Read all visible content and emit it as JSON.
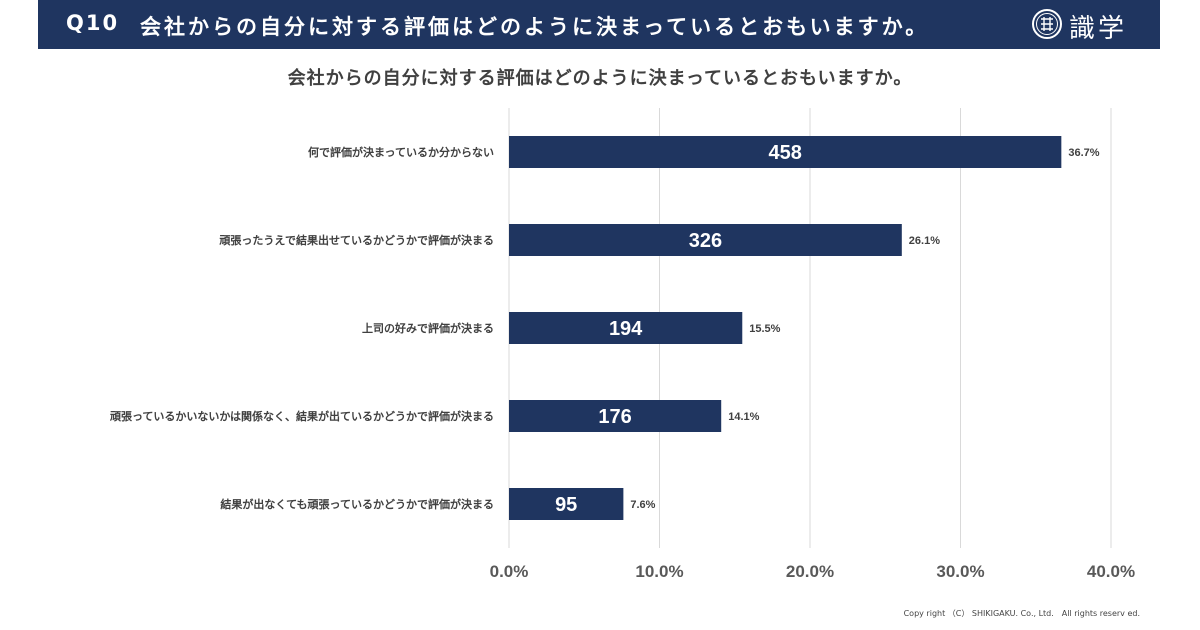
{
  "header": {
    "question_no": "Q10",
    "question": "会社からの自分に対する評価はどのように決まっているとおもいますか。",
    "logo_text": "識学",
    "logo_icon": "shikigaku-seal-icon"
  },
  "colors": {
    "header_bg": "#1f3560",
    "bar": "#1f3560",
    "grid": "#d9d9d9",
    "axis_text": "#595959",
    "label_text": "#404040"
  },
  "chart_data": {
    "type": "bar",
    "orientation": "horizontal",
    "title": "会社からの自分に対する評価はどのように決まっているとおもいますか。",
    "categories": [
      "何で評価が決まっているか分からない",
      "頑張ったうえで結果出せているかどうかで評価が決まる",
      "上司の好みで評価が決まる",
      "頑張っているかいないかは関係なく、結果が出ているかどうかで評価が決まる",
      "結果が出なくても頑張っているかどうかで評価が決まる"
    ],
    "values": [
      36.7,
      26.1,
      15.5,
      14.1,
      7.6
    ],
    "value_labels": [
      "36.7%",
      "26.1%",
      "15.5%",
      "14.1%",
      "7.6%"
    ],
    "counts": [
      458,
      326,
      194,
      176,
      95
    ],
    "xlim": [
      0,
      40
    ],
    "xticks": [
      0,
      10,
      20,
      30,
      40
    ],
    "xtick_labels": [
      "0.0%",
      "10.0%",
      "20.0%",
      "30.0%",
      "40.0%"
    ],
    "grid": true
  },
  "footer": {
    "copyright": "Copy right （C） SHIKIGAKU. Co., Ltd.　All rights reserv ed."
  }
}
